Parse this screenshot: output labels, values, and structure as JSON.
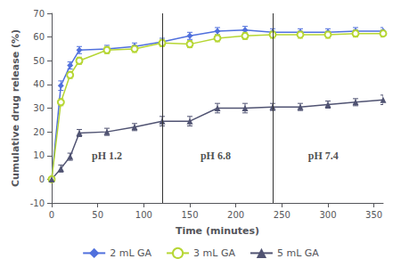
{
  "chart_data": {
    "type": "line",
    "xlabel": "Time (minutes)",
    "ylabel": "Cumulative drug release (%)",
    "xlim": [
      0,
      360
    ],
    "ylim": [
      -10,
      70
    ],
    "xticks": [
      0,
      50,
      100,
      150,
      200,
      250,
      300,
      350
    ],
    "yticks": [
      -10,
      0,
      10,
      20,
      30,
      40,
      50,
      60,
      70
    ],
    "grid": false,
    "legend": "bottom",
    "x": [
      0,
      10,
      20,
      30,
      60,
      90,
      120,
      150,
      180,
      210,
      240,
      270,
      300,
      330,
      360
    ],
    "series": [
      {
        "name": "2 mL GA",
        "marker": "diamond",
        "values": [
          0,
          39.5,
          48.0,
          54.5,
          55.0,
          56.0,
          58.0,
          60.5,
          62.5,
          63.0,
          62.0,
          62.0,
          62.0,
          62.5,
          62.5
        ],
        "yerr": [
          0.5,
          2.0,
          1.5,
          1.5,
          1.5,
          1.5,
          1.5,
          1.5,
          1.5,
          1.5,
          1.5,
          1.5,
          1.5,
          1.5,
          1.5
        ]
      },
      {
        "name": "3 mL GA",
        "marker": "open circle",
        "values": [
          0,
          32.5,
          44.0,
          50.0,
          54.5,
          55.0,
          57.5,
          57.0,
          59.5,
          60.5,
          61.0,
          61.0,
          61.0,
          61.5,
          61.5
        ],
        "yerr": [
          0.5,
          1.5,
          1.5,
          1.5,
          1.5,
          1.5,
          1.5,
          1.5,
          1.5,
          1.5,
          1.5,
          1.5,
          1.5,
          1.5,
          1.5
        ]
      },
      {
        "name": "5 mL GA",
        "marker": "triangle",
        "values": [
          0,
          4.5,
          9.5,
          19.5,
          20.0,
          22.0,
          24.5,
          24.5,
          30.0,
          30.0,
          30.5,
          30.5,
          31.5,
          32.5,
          33.5
        ],
        "yerr": [
          0.5,
          1.5,
          1.5,
          1.5,
          1.5,
          1.5,
          2.0,
          2.0,
          2.0,
          2.0,
          1.5,
          1.5,
          1.5,
          1.5,
          2.0
        ]
      }
    ],
    "vlines": [
      120,
      240
    ],
    "annotations": [
      {
        "text": "pH 1.2",
        "x": 60,
        "y": 7
      },
      {
        "text": "pH 6.8",
        "x": 178,
        "y": 7
      },
      {
        "text": "pH 7.4",
        "x": 295,
        "y": 7
      }
    ]
  }
}
